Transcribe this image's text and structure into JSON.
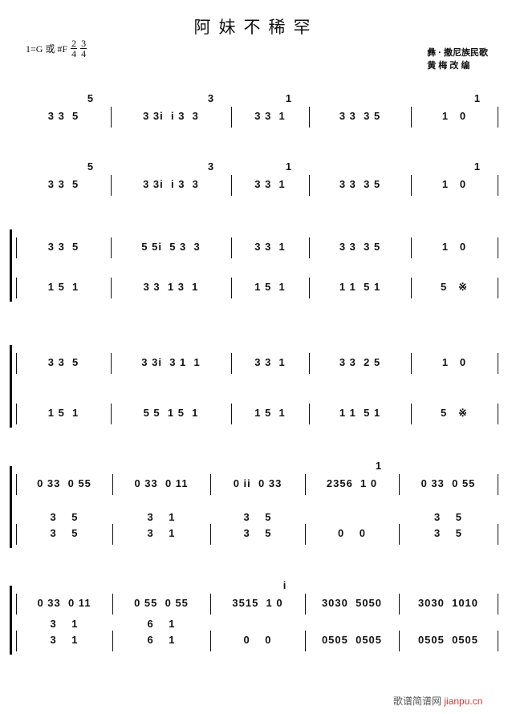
{
  "title": "阿妹不稀罕",
  "key": {
    "text": "1=G 或 #F",
    "time1": {
      "num": "2",
      "den": "4"
    },
    "time2": {
      "num": "3",
      "den": "4"
    }
  },
  "credit": {
    "line1": "彝 · 撒尼族民歌",
    "line2": "黄 梅 改 编"
  },
  "systems": [
    {
      "staves": [
        {
          "measures": [
            "3 3  5",
            "3 3i  i 3  3",
            "3 3  1",
            "3 3  3 5",
            "1   0"
          ]
        }
      ],
      "upper": [
        "5",
        "3",
        "1",
        "",
        "1"
      ]
    },
    {
      "staves": [
        {
          "measures": [
            "3 3  5",
            "3 3i  i 3  3",
            "3 3  1",
            "3 3  3 5",
            "1   0"
          ]
        }
      ],
      "upper": [
        "5",
        "3",
        "1",
        "",
        "1"
      ]
    },
    {
      "staves": [
        {
          "measures": [
            "3 3  5",
            "5 5i  5 3  3",
            "3 3  1",
            "3 3  3 5",
            "1   0"
          ]
        },
        {
          "measures": [
            "1 5  1",
            "3 3  1 3  1",
            "1 5  1",
            "1 1  5 1",
            "5   ※"
          ]
        }
      ]
    },
    {
      "staves": [
        {
          "measures": [
            "3 3  5",
            "3 3i  3 1  1",
            "3 3  1",
            "3 3  2 5",
            "1   0"
          ]
        },
        {
          "measures": [
            "1 5  1",
            "5 5  1 5  1",
            "1 5  1",
            "1 1  5 1",
            "5   ※"
          ]
        }
      ]
    },
    {
      "staves": [
        {
          "measures": [
            "0 33  0 55",
            "0 33  0 11",
            "0 ii  0 33",
            "2356  1 0",
            "0 33  0 55"
          ]
        },
        {
          "measures": [
            "3    5",
            "3    1",
            "3    5",
            "",
            "3    5"
          ]
        },
        {
          "measures": [
            "3    5",
            "3    1",
            "3    5",
            "0    0",
            "3    5"
          ]
        }
      ],
      "upper": [
        "",
        "",
        "",
        "1",
        ""
      ]
    },
    {
      "staves": [
        {
          "measures": [
            "0 33  0 11",
            "0 55  0 55",
            "3515  1 0",
            "3030  5050",
            "3030  1010"
          ]
        },
        {
          "measures": [
            "3    1",
            "6    1",
            "",
            "",
            ""
          ]
        },
        {
          "measures": [
            "3    1",
            "6    1",
            "0    0",
            "0505  0505",
            "0505  0505"
          ]
        }
      ],
      "upper": [
        "",
        "",
        "i",
        "",
        ""
      ]
    }
  ],
  "watermark": {
    "cn": "歌谱简谱网",
    "en": "jianpu.cn"
  }
}
